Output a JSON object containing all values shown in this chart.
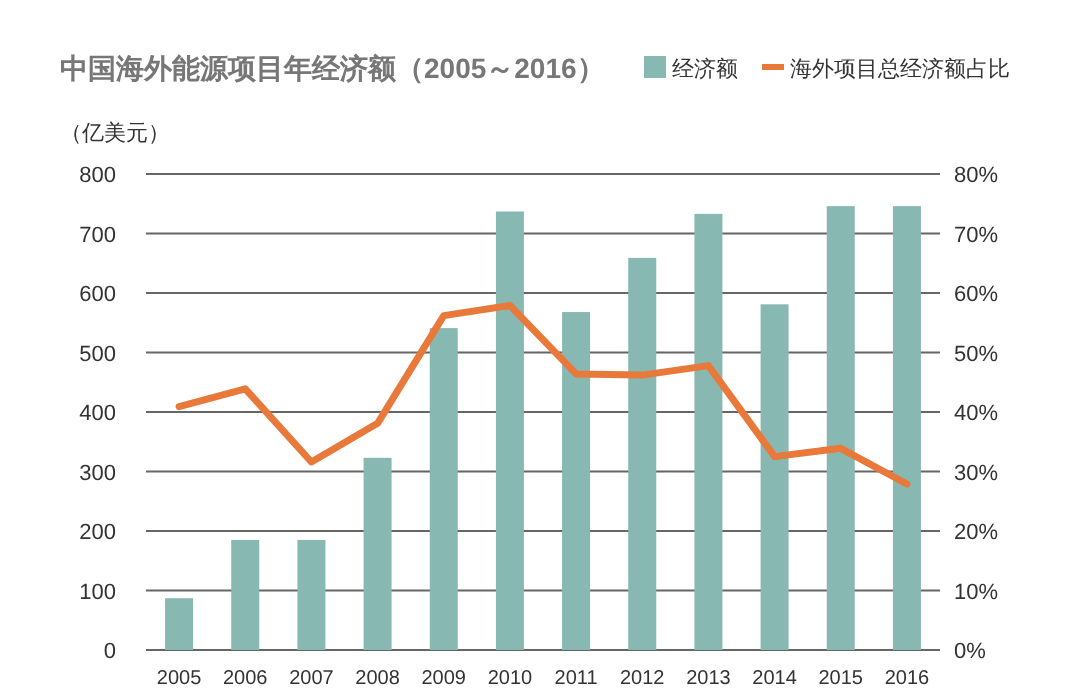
{
  "chart_data": {
    "type": "bar",
    "title": "中国海外能源项目年经济额（2005～2016）",
    "ylabel": "（亿美元）",
    "categories": [
      "2005",
      "2006",
      "2007",
      "2008",
      "2009",
      "2010",
      "2011",
      "2012",
      "2013",
      "2014",
      "2015",
      "2016"
    ],
    "series": [
      {
        "name": "经济额",
        "color": "#88b8b2",
        "values": [
          87,
          185,
          185,
          323,
          541,
          737,
          568,
          659,
          733,
          581,
          746,
          746
        ]
      },
      {
        "name": "海外项目总经济额占比",
        "type": "line",
        "axis": "y2",
        "color": "#e8793a",
        "values": [
          40.9,
          43.9,
          31.6,
          38.1,
          56.2,
          57.9,
          46.4,
          46.2,
          47.8,
          32.5,
          33.9,
          27.9
        ]
      }
    ],
    "ylim": [
      0,
      800
    ],
    "yticks": [
      0,
      100,
      200,
      300,
      400,
      500,
      600,
      700,
      800
    ],
    "y2lim": [
      0,
      80
    ],
    "y2ticks": [
      {
        "value": 0,
        "label": "0%"
      },
      {
        "value": 10,
        "label": "10%"
      },
      {
        "value": 20,
        "label": "20%"
      },
      {
        "value": 30,
        "label": "30%"
      },
      {
        "value": 40,
        "label": "40%"
      },
      {
        "value": 50,
        "label": "50%"
      },
      {
        "value": 60,
        "label": "60%"
      },
      {
        "value": 70,
        "label": "70%"
      },
      {
        "value": 80,
        "label": "80%"
      }
    ],
    "grid": "y",
    "legend": "top right"
  }
}
